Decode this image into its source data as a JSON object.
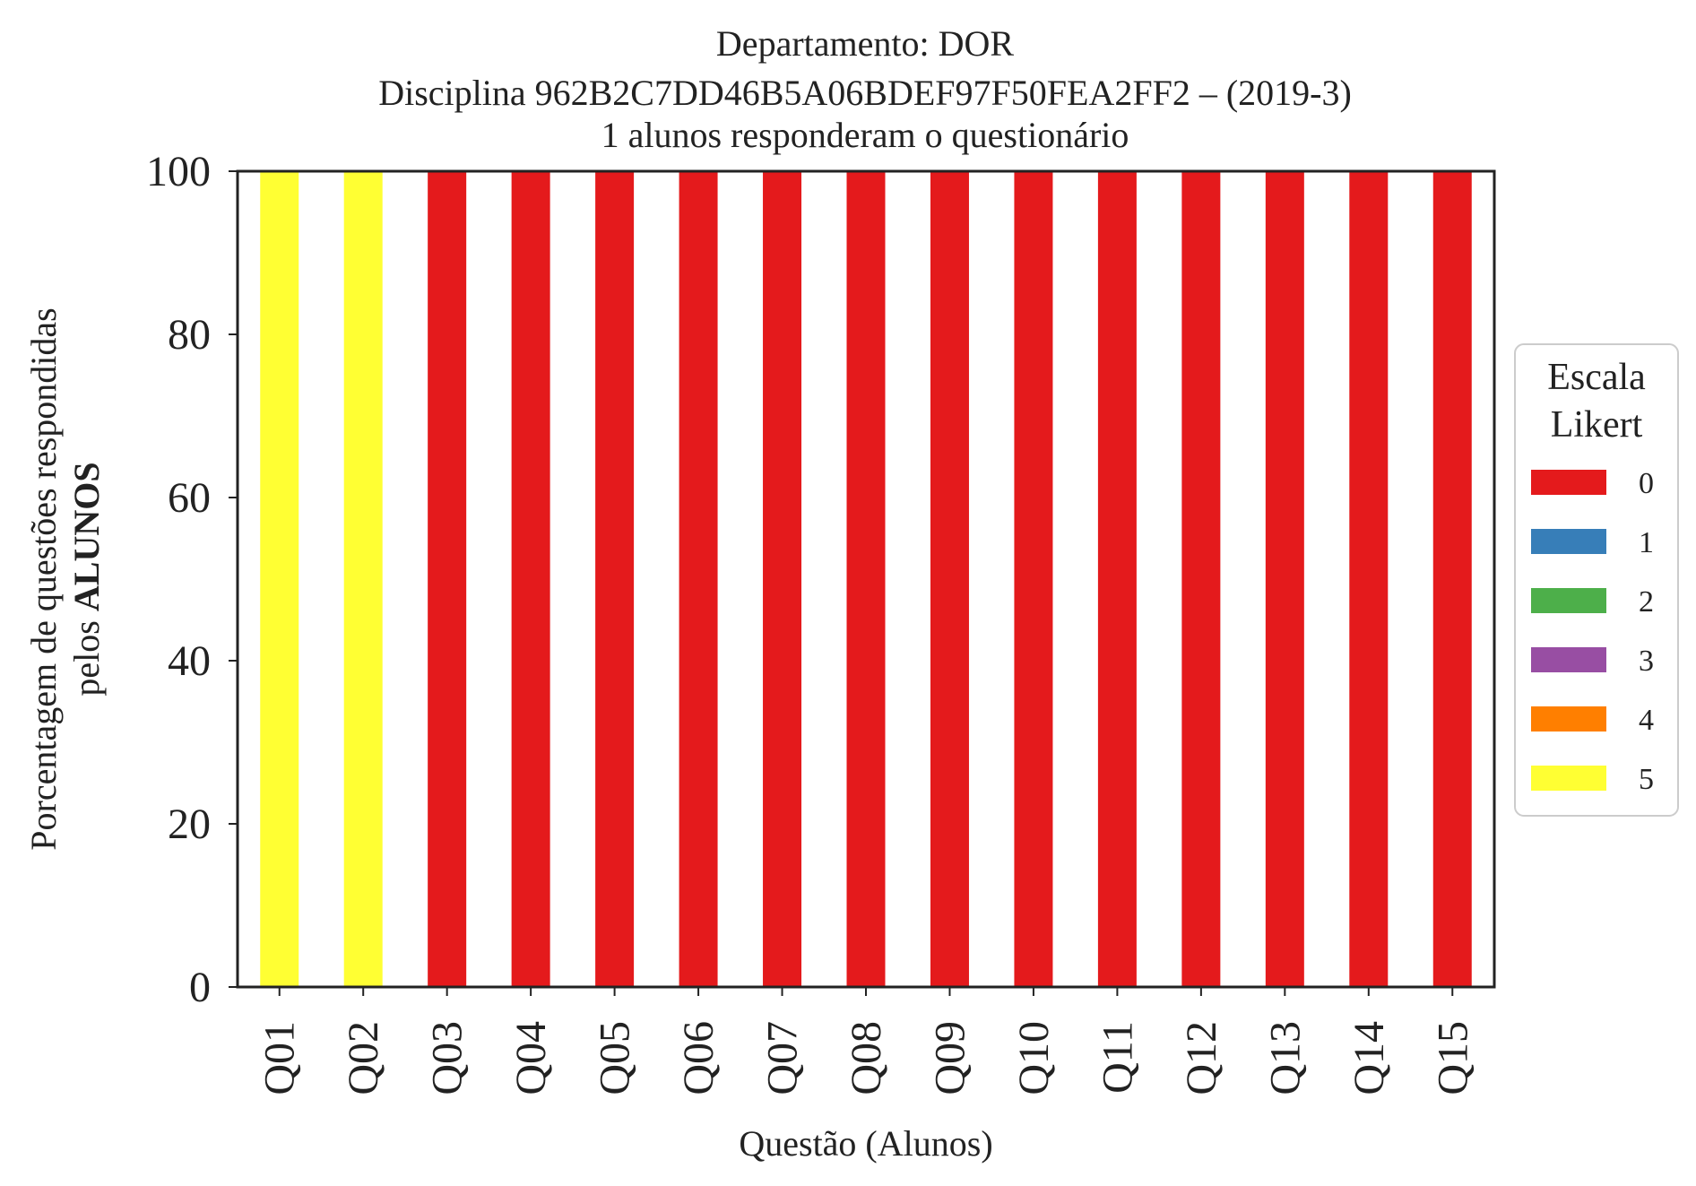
{
  "chart_data": {
    "type": "bar",
    "stacked": true,
    "title_lines": [
      "Departamento: DOR",
      "Disciplina 962B2C7DD46B5A06BDEF97F50FEA2FF2 – (2019-3)",
      "1 alunos responderam o questionário"
    ],
    "xlabel": "Questão (Alunos)",
    "ylabel_line1": "Porcentagem de questões respondidas",
    "ylabel_line2_prefix": "pelos ",
    "ylabel_line2_bold": "ALUNOS",
    "ylim": [
      0,
      100
    ],
    "yticks": [
      "0",
      "20",
      "40",
      "60",
      "80",
      "100"
    ],
    "categories": [
      "Q01",
      "Q02",
      "Q03",
      "Q04",
      "Q05",
      "Q06",
      "Q07",
      "Q08",
      "Q09",
      "Q10",
      "Q11",
      "Q12",
      "Q13",
      "Q14",
      "Q15"
    ],
    "series": [
      {
        "name": "0",
        "color": "#e41a1c",
        "values": [
          0,
          0,
          100,
          100,
          100,
          100,
          100,
          100,
          100,
          100,
          100,
          100,
          100,
          100,
          100
        ]
      },
      {
        "name": "1",
        "color": "#377eb8",
        "values": [
          0,
          0,
          0,
          0,
          0,
          0,
          0,
          0,
          0,
          0,
          0,
          0,
          0,
          0,
          0
        ]
      },
      {
        "name": "2",
        "color": "#4daf4a",
        "values": [
          0,
          0,
          0,
          0,
          0,
          0,
          0,
          0,
          0,
          0,
          0,
          0,
          0,
          0,
          0
        ]
      },
      {
        "name": "3",
        "color": "#984ea3",
        "values": [
          0,
          0,
          0,
          0,
          0,
          0,
          0,
          0,
          0,
          0,
          0,
          0,
          0,
          0,
          0
        ]
      },
      {
        "name": "4",
        "color": "#ff7f00",
        "values": [
          0,
          0,
          0,
          0,
          0,
          0,
          0,
          0,
          0,
          0,
          0,
          0,
          0,
          0,
          0
        ]
      },
      {
        "name": "5",
        "color": "#ffff33",
        "values": [
          100,
          100,
          0,
          0,
          0,
          0,
          0,
          0,
          0,
          0,
          0,
          0,
          0,
          0,
          0
        ]
      }
    ],
    "legend": {
      "title_lines": [
        "Escala",
        "Likert"
      ],
      "placement": "center-right"
    },
    "grid": false
  }
}
